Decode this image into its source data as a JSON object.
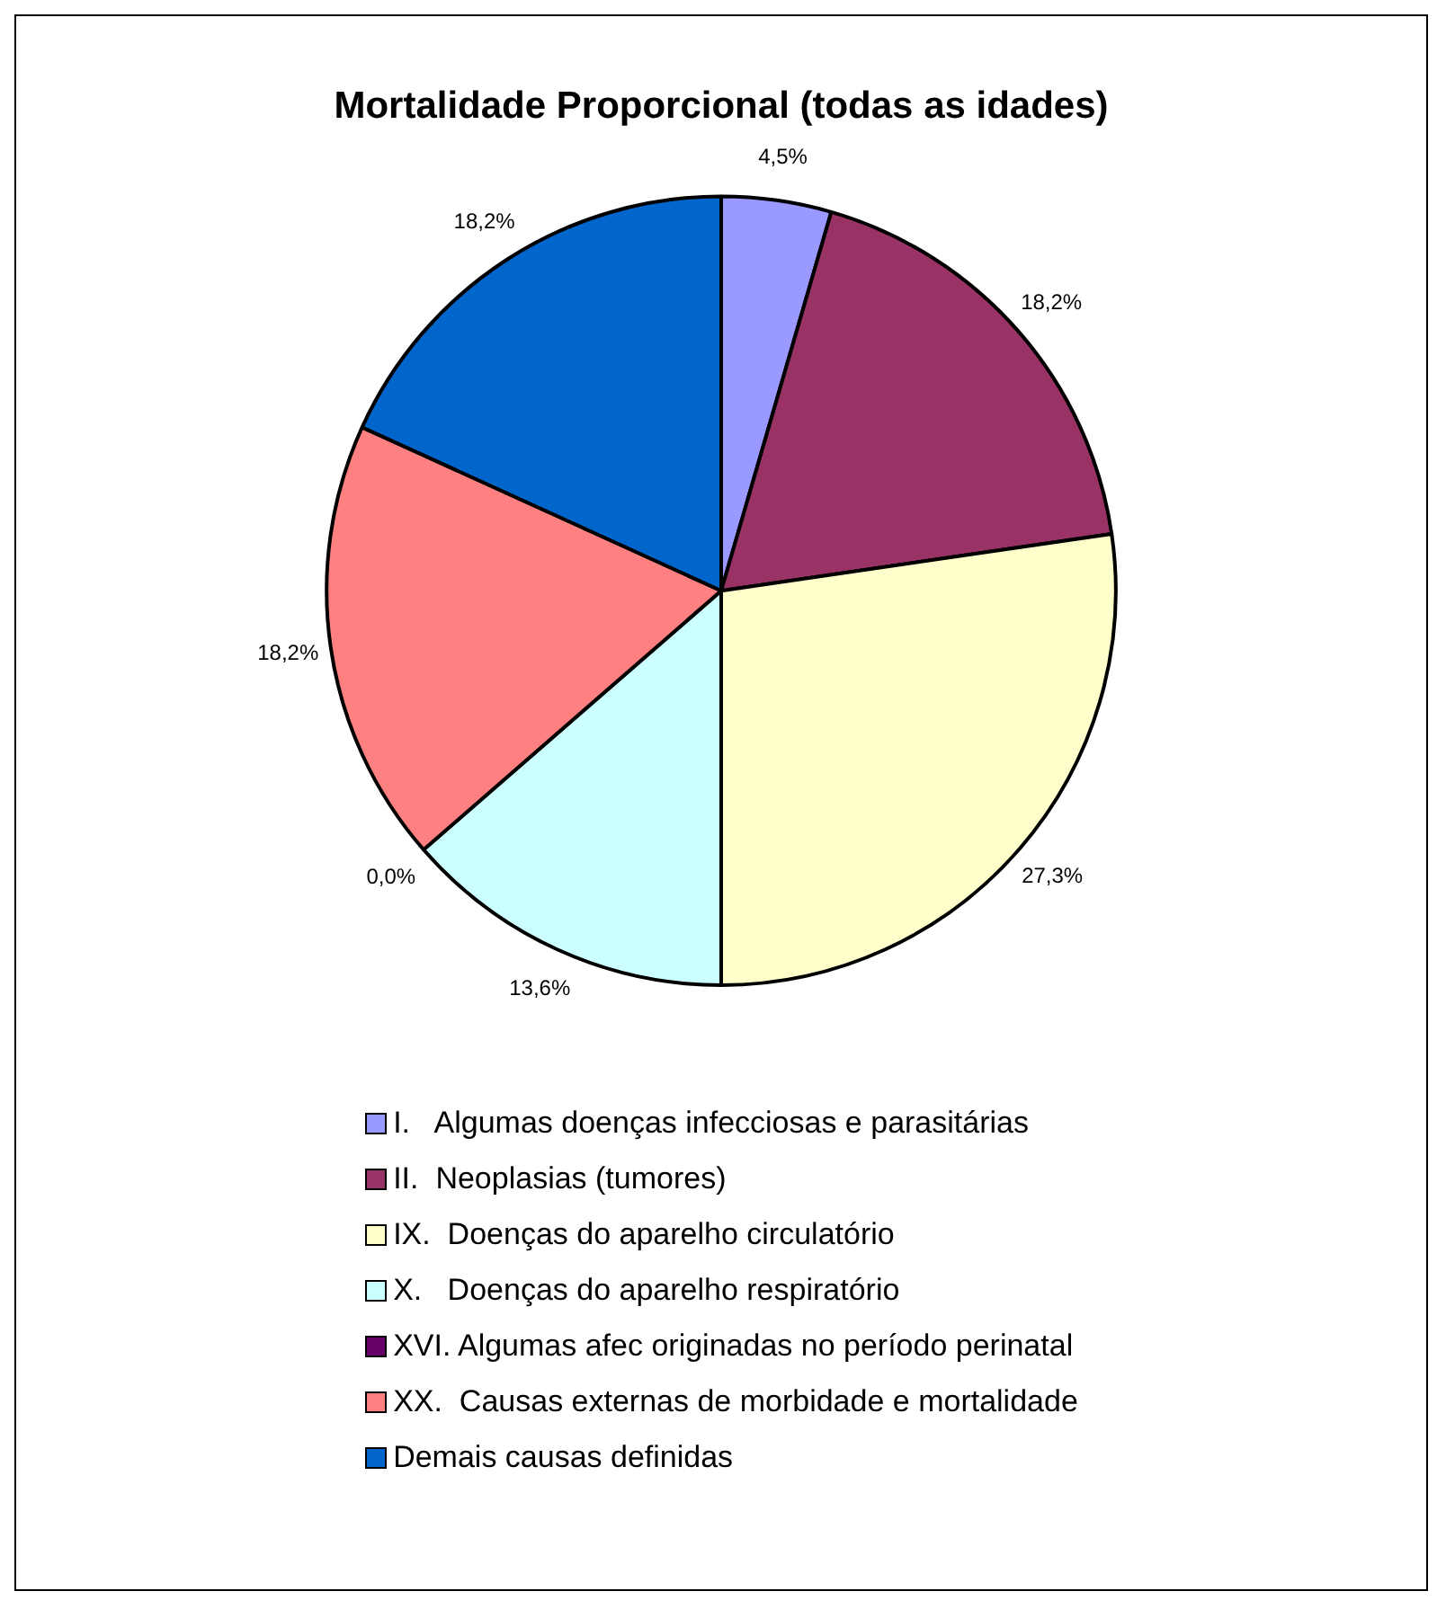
{
  "chart_data": {
    "type": "pie",
    "title": "Mortalidade Proporcional (todas as idades)",
    "categories": [
      "I.   Algumas doenças infecciosas e parasitárias",
      "II.  Neoplasias (tumores)",
      "IX.  Doenças do aparelho circulatório",
      "X.   Doenças do aparelho respiratório",
      "XVI. Algumas afec originadas no período perinatal",
      "XX.  Causas externas de morbidade e mortalidade",
      "Demais causas definidas"
    ],
    "values": [
      4.5,
      18.2,
      27.3,
      13.6,
      0,
      18.2,
      18.2
    ],
    "value_labels": [
      "4,5%",
      "18,2%",
      "27,3%",
      "13,6%",
      "0,0%",
      "18,2%",
      "18,2%"
    ],
    "colors": [
      "#9999ff",
      "#993366",
      "#ffffcc",
      "#ccffff",
      "#660066",
      "#ff8080",
      "#0066cc"
    ],
    "legend": "bottom"
  }
}
